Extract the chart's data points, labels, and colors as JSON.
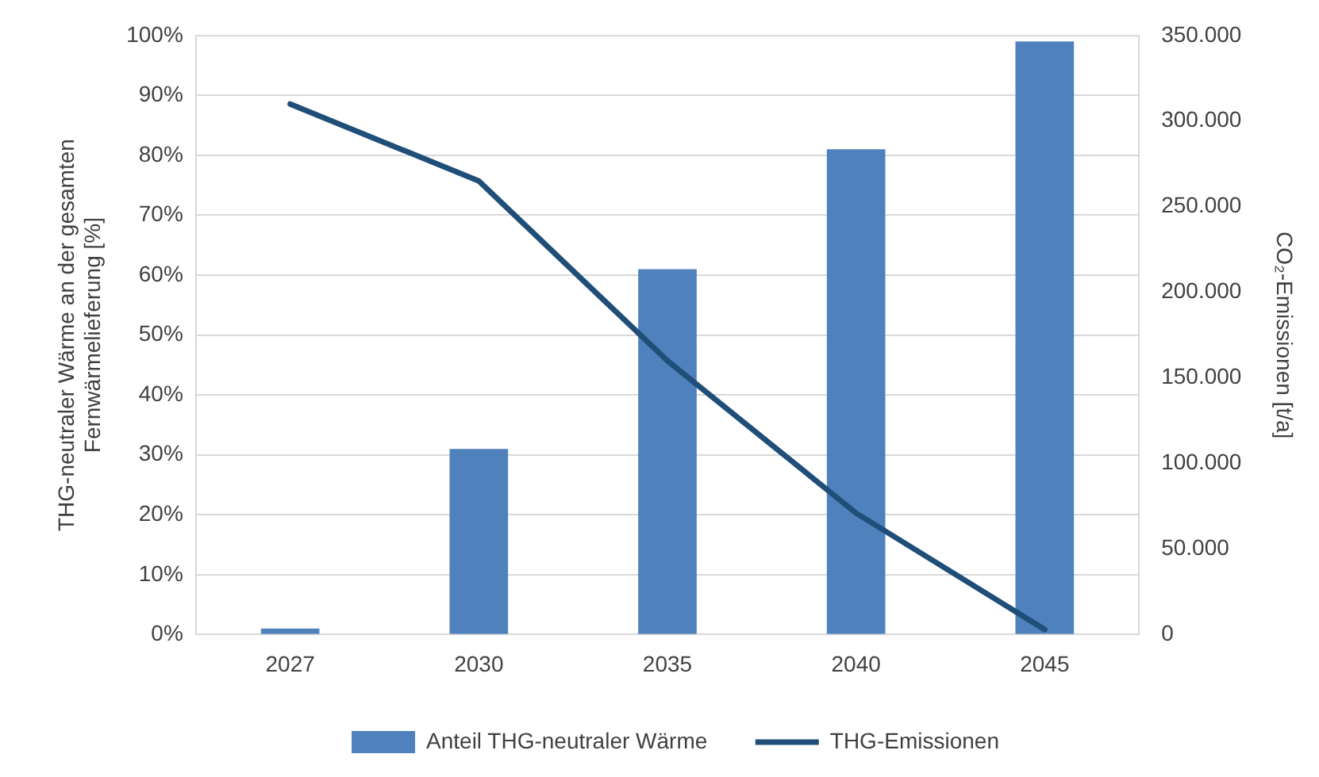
{
  "chart_data": {
    "type": "bar",
    "ylabel": "THG-neutraler Wärme an der gesamten Fernwärmelieferung [%]",
    "y2label": "CO₂-Emissionen [t/a]",
    "categories": [
      "2027",
      "2030",
      "2035",
      "2040",
      "2045"
    ],
    "series": [
      {
        "name": "Anteil THG-neutraler Wärme",
        "color": "#4f81bd",
        "values": [
          1,
          31,
          61,
          81,
          99
        ]
      },
      {
        "name": "THG-Emissionen",
        "type": "line",
        "axis": "y2",
        "color": "#1f4e79",
        "values": [
          310000,
          265000,
          160000,
          71000,
          3000
        ]
      }
    ],
    "ylim": [
      0,
      100
    ],
    "yticks": [
      {
        "value": 0,
        "label": "0%"
      },
      {
        "value": 10,
        "label": "10%"
      },
      {
        "value": 20,
        "label": "20%"
      },
      {
        "value": 30,
        "label": "30%"
      },
      {
        "value": 40,
        "label": "40%"
      },
      {
        "value": 50,
        "label": "50%"
      },
      {
        "value": 60,
        "label": "60%"
      },
      {
        "value": 70,
        "label": "70%"
      },
      {
        "value": 80,
        "label": "80%"
      },
      {
        "value": 90,
        "label": "90%"
      },
      {
        "value": 100,
        "label": "100%"
      }
    ],
    "y2lim": [
      0,
      350000
    ],
    "y2ticks": [
      0,
      {
        "value": 50000,
        "label": "50.000"
      },
      {
        "value": 100000,
        "label": "100.000"
      },
      {
        "value": 150000,
        "label": "150.000"
      },
      {
        "value": 200000,
        "label": "200.000"
      },
      {
        "value": 250000,
        "label": "250.000"
      },
      {
        "value": 300000,
        "label": "300.000"
      },
      {
        "value": 350000,
        "label": "350.000"
      }
    ],
    "grid": "y",
    "legend": "bottom",
    "marker": "none",
    "line_style": "solid"
  }
}
